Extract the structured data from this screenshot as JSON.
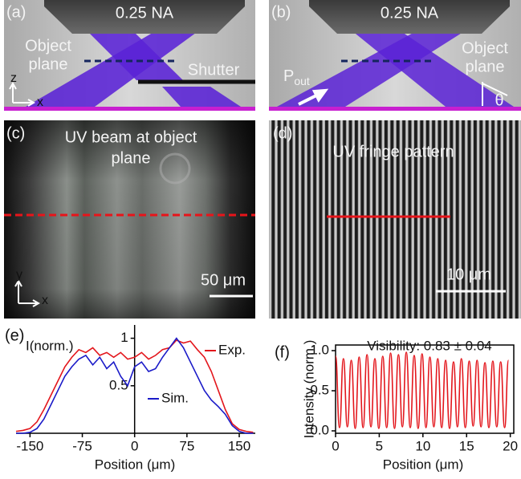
{
  "panels": {
    "a": {
      "label": "(a)",
      "objective": "0.25 NA",
      "object_plane": [
        "Object",
        "plane"
      ],
      "shutter": "Shutter",
      "axis_z": "z",
      "axis_x": "x"
    },
    "b": {
      "label": "(b)",
      "objective": "0.25 NA",
      "object_plane": [
        "Object",
        "plane"
      ],
      "power": "P",
      "power_sub": "out",
      "angle": "θ"
    },
    "c": {
      "label": "(c)",
      "caption": [
        "UV beam at object",
        "plane"
      ],
      "scale_bar": "50 μm",
      "axis_y": "y",
      "axis_x": "x"
    },
    "d": {
      "label": "(d)",
      "caption": "UV fringe pattern",
      "scale_bar": "10 μm"
    }
  },
  "chart_data": [
    {
      "type": "line",
      "panel_label": "(e)",
      "y_label": "I(norm.)",
      "x_label": "Position (μm)",
      "x": [
        -170,
        -160,
        -150,
        -140,
        -130,
        -120,
        -110,
        -100,
        -90,
        -80,
        -70,
        -60,
        -50,
        -40,
        -30,
        -20,
        -10,
        0,
        10,
        20,
        30,
        40,
        50,
        60,
        70,
        80,
        90,
        100,
        110,
        120,
        130,
        140,
        150,
        160,
        170
      ],
      "series": [
        {
          "name": "Exp.",
          "color": "#e3161c",
          "values": [
            0.02,
            0.03,
            0.05,
            0.12,
            0.25,
            0.4,
            0.55,
            0.7,
            0.8,
            0.88,
            0.85,
            0.9,
            0.82,
            0.85,
            0.8,
            0.85,
            0.78,
            0.8,
            0.85,
            0.78,
            0.82,
            0.88,
            0.9,
            0.98,
            0.95,
            0.97,
            0.88,
            0.8,
            0.65,
            0.45,
            0.25,
            0.1,
            0.04,
            0.02,
            0.01
          ]
        },
        {
          "name": "Sim.",
          "color": "#1a1ac8",
          "values": [
            0,
            0,
            0.01,
            0.05,
            0.15,
            0.3,
            0.45,
            0.6,
            0.7,
            0.78,
            0.82,
            0.72,
            0.8,
            0.68,
            0.75,
            0.6,
            0.5,
            0.7,
            0.75,
            0.65,
            0.68,
            0.8,
            0.9,
            1.0,
            0.9,
            0.75,
            0.6,
            0.45,
            0.35,
            0.28,
            0.2,
            0.08,
            0.02,
            0,
            0
          ]
        }
      ],
      "xlim": [
        -170,
        173
      ],
      "ylim": [
        0,
        1.14
      ],
      "xticks": [
        -150,
        -75,
        0,
        75,
        150
      ],
      "yticks": [
        0.5,
        1
      ]
    },
    {
      "type": "line",
      "panel_label": "(f)",
      "annotation": "Visibility: 0.83 ± 0.04",
      "y_label": "Intensity (norm.)",
      "x_label": "Position (μm)",
      "x": [
        0,
        0.45,
        0.9,
        1.35,
        1.8,
        2.25,
        2.7,
        3.15,
        3.6,
        4.05,
        4.5,
        4.95,
        5.4,
        5.85,
        6.3,
        6.75,
        7.2,
        7.65,
        8.1,
        8.55,
        9,
        9.45,
        9.9,
        10.35,
        10.8,
        11.25,
        11.7,
        12.15,
        12.6,
        13.05,
        13.5,
        13.95,
        14.4,
        14.85,
        15.3,
        15.75,
        16.2,
        16.65,
        17.1,
        17.55,
        18,
        18.45,
        18.9,
        19.35,
        19.8
      ],
      "series": [
        {
          "color": "#e3161c",
          "values": [
            0.93,
            0.04,
            0.9,
            0.05,
            0.88,
            0.03,
            0.92,
            0.04,
            0.95,
            0.05,
            0.9,
            0.03,
            0.93,
            0.04,
            0.97,
            0.03,
            0.95,
            0.05,
            0.98,
            0.04,
            0.94,
            0.03,
            0.96,
            0.04,
            0.92,
            0.05,
            0.9,
            0.04,
            0.88,
            0.03,
            0.86,
            0.05,
            0.9,
            0.04,
            0.87,
            0.06,
            0.88,
            0.05,
            0.85,
            0.04,
            0.87,
            0.05,
            0.86,
            0.04,
            0.88
          ]
        }
      ],
      "xlim": [
        0,
        20.4
      ],
      "ylim": [
        -0.03,
        1.07
      ],
      "xticks": [
        0,
        5,
        10,
        15,
        20
      ],
      "yticks": [
        {
          "value": 0,
          "label": "0.0"
        },
        {
          "value": 0.5,
          "label": "0.5"
        },
        {
          "value": 1,
          "label": "1.0"
        }
      ]
    }
  ]
}
